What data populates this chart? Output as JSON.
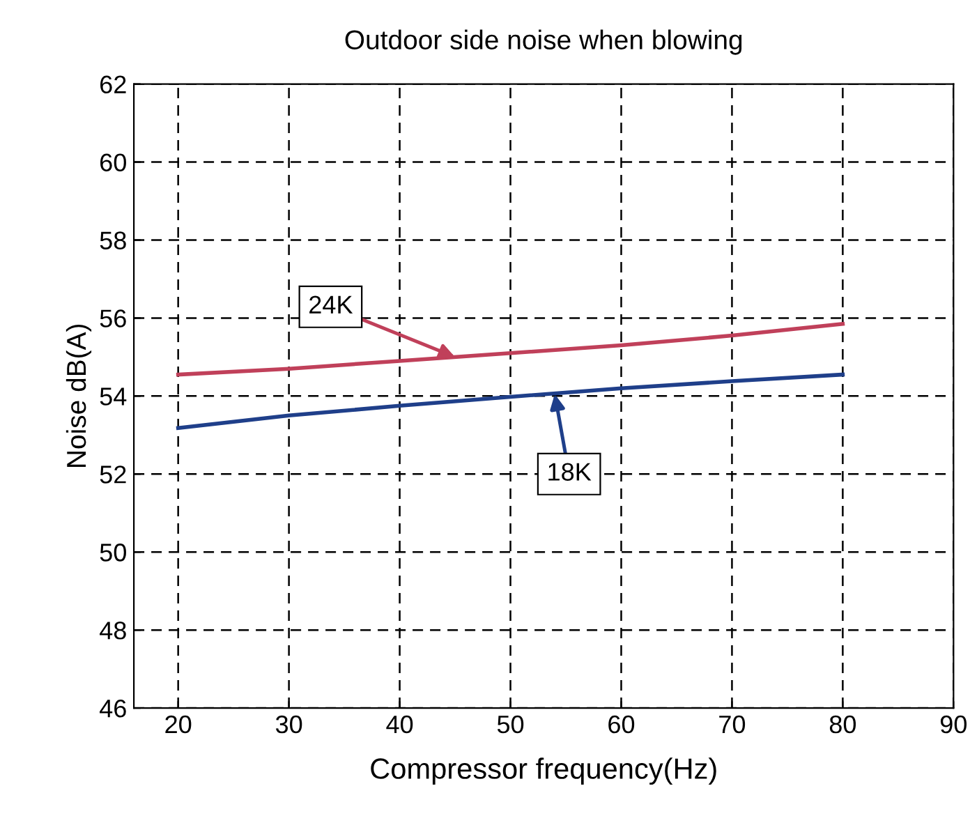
{
  "chart_data": {
    "type": "line",
    "title": "Outdoor side noise when blowing",
    "xlabel": "Compressor frequency(Hz)",
    "ylabel": "Noise dB(A)",
    "series": [
      {
        "color": "#c0405a",
        "x": [
          20,
          30,
          40,
          50,
          60,
          70,
          80
        ],
        "values": [
          54.55,
          54.7,
          54.9,
          55.1,
          55.3,
          55.55,
          55.85
        ]
      },
      {
        "color": "#1f3f8a",
        "x": [
          20,
          30,
          40,
          50,
          60,
          70,
          80
        ],
        "values": [
          53.18,
          53.5,
          53.75,
          53.98,
          54.2,
          54.38,
          54.55
        ]
      }
    ],
    "annotations": [
      {
        "text": "24K",
        "x": 45,
        "y": 55.0
      },
      {
        "text": "18K",
        "x": 54,
        "y": 54.05
      }
    ],
    "xlim": [
      16,
      90
    ],
    "xticks": [
      20,
      30,
      40,
      50,
      60,
      70,
      80,
      90
    ],
    "ylim": [
      46,
      62
    ],
    "yticks": [
      46,
      48,
      50,
      52,
      54,
      56,
      58,
      60,
      62
    ],
    "grid": true,
    "line_style": "solid",
    "marker": "none"
  }
}
